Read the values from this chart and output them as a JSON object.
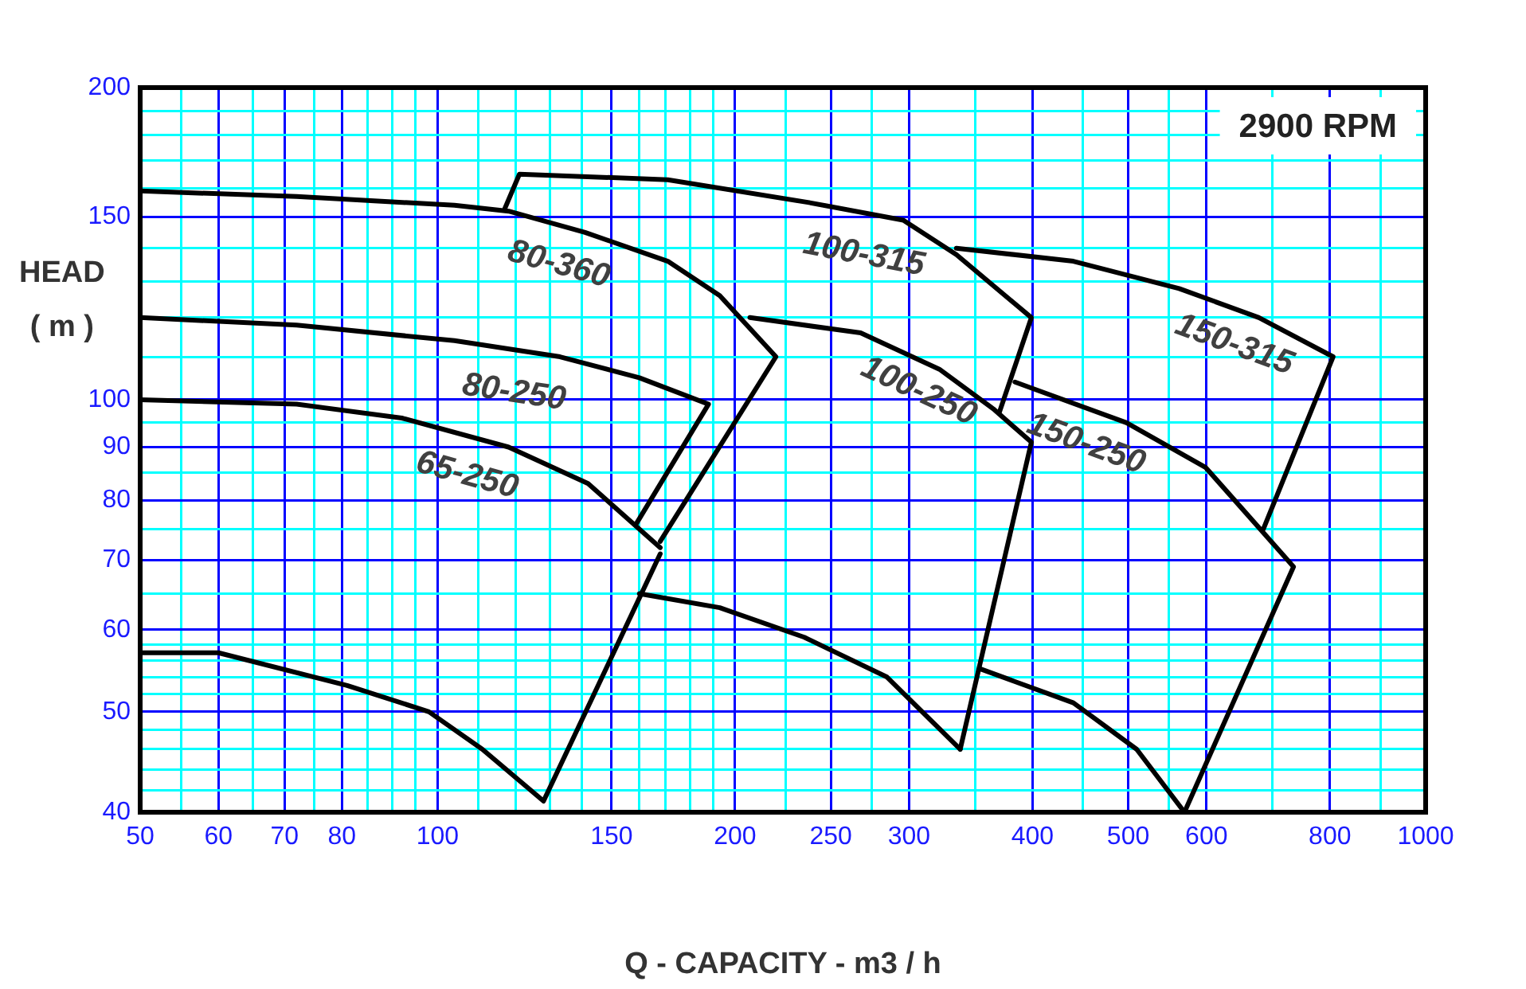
{
  "chart_data": {
    "type": "line",
    "xlabel": "Q - CAPACITY - m3 / h",
    "ylabel": "HEAD\n( m )",
    "annotations": [
      "2900 RPM"
    ],
    "log": "xy",
    "xlim": [
      50,
      1000
    ],
    "ylim": [
      40,
      200
    ],
    "xticks": [
      50,
      {
        "value": 55,
        "label": null
      },
      60,
      {
        "value": 65,
        "label": null
      },
      70,
      {
        "value": 75,
        "label": null
      },
      80,
      {
        "value": 85,
        "label": null
      },
      {
        "value": 90,
        "label": null
      },
      {
        "value": 95,
        "label": null
      },
      100,
      {
        "value": 110,
        "label": null
      },
      {
        "value": 120,
        "label": null
      },
      {
        "value": 130,
        "label": null
      },
      {
        "value": 140,
        "label": null
      },
      150,
      {
        "value": 160,
        "label": null
      },
      {
        "value": 170,
        "label": null
      },
      {
        "value": 180,
        "label": null
      },
      {
        "value": 190,
        "label": null
      },
      200,
      {
        "value": 225,
        "label": null
      },
      250,
      {
        "value": 275,
        "label": null
      },
      300,
      {
        "value": 350,
        "label": null
      },
      400,
      {
        "value": 450,
        "label": null
      },
      500,
      {
        "value": 550,
        "label": null
      },
      600,
      {
        "value": 700,
        "label": null
      },
      800,
      {
        "value": 900,
        "label": null
      },
      1000
    ],
    "yticks": [
      40,
      {
        "value": 42,
        "label": null
      },
      {
        "value": 44,
        "label": null
      },
      {
        "value": 46,
        "label": null
      },
      {
        "value": 48,
        "label": null
      },
      50,
      {
        "value": 52,
        "label": null
      },
      {
        "value": 54,
        "label": null
      },
      {
        "value": 56,
        "label": null
      },
      {
        "value": 58,
        "label": null
      },
      60,
      {
        "value": 65,
        "label": null
      },
      70,
      {
        "value": 75,
        "label": null
      },
      80,
      {
        "value": 85,
        "label": null
      },
      90,
      {
        "value": 95,
        "label": null
      },
      100,
      {
        "value": 110,
        "label": null
      },
      {
        "value": 120,
        "label": null
      },
      {
        "value": 130,
        "label": null
      },
      {
        "value": 140,
        "label": null
      },
      150,
      {
        "value": 160,
        "label": null
      },
      {
        "value": 170,
        "label": null
      },
      {
        "value": 180,
        "label": null
      },
      {
        "value": 190,
        "label": null
      },
      200
    ],
    "grid": true,
    "legend": false,
    "marker": "none",
    "line_style": "solid",
    "series": [
      {
        "name": "80-360",
        "color": "#000000",
        "x": [
          50,
          72,
          104,
          118,
          141,
          171,
          193,
          220,
          168
        ],
        "values": [
          159,
          157,
          154,
          152,
          145,
          136,
          126,
          110,
          73
        ]
      },
      {
        "name": "80-250",
        "color": "#000000",
        "x": [
          50,
          72,
          104,
          133,
          160,
          188,
          159
        ],
        "values": [
          120,
          118,
          114,
          110,
          105,
          99,
          76
        ]
      },
      {
        "name": "65-250",
        "color": "#000000",
        "x": [
          50,
          72,
          92,
          118,
          142,
          168
        ],
        "values": [
          100,
          99,
          96,
          90,
          83,
          72
        ]
      },
      {
        "color": "#000000",
        "x": [
          50,
          60,
          81,
          98,
          111,
          128,
          168
        ],
        "values": [
          57,
          57,
          53,
          50,
          46,
          41,
          71
        ]
      },
      {
        "name": "100-315",
        "color": "#000000",
        "x": [
          117,
          121,
          171,
          237,
          296,
          335,
          399,
          370
        ],
        "values": [
          153,
          165,
          163,
          155,
          149,
          138,
          120,
          97
        ]
      },
      {
        "name": "100-250",
        "color": "#000000",
        "x": [
          207,
          268,
          322,
          365,
          399,
          338
        ],
        "values": [
          120,
          116,
          107,
          98,
          91,
          46
        ]
      },
      {
        "color": "#000000",
        "x": [
          160,
          193,
          235,
          285,
          338
        ],
        "values": [
          65,
          63,
          59,
          54,
          46
        ]
      },
      {
        "name": "150-315",
        "color": "#000000",
        "x": [
          335,
          440,
          563,
          678,
          806,
          685
        ],
        "values": [
          140,
          136,
          128,
          120,
          110,
          75
        ]
      },
      {
        "name": "150-250",
        "color": "#000000",
        "x": [
          384,
          498,
          599,
          735,
          570
        ],
        "values": [
          104,
          95,
          86,
          69,
          40
        ]
      },
      {
        "color": "#000000",
        "x": [
          354,
          440,
          510,
          570
        ],
        "values": [
          55,
          51,
          46,
          40
        ]
      }
    ]
  }
}
